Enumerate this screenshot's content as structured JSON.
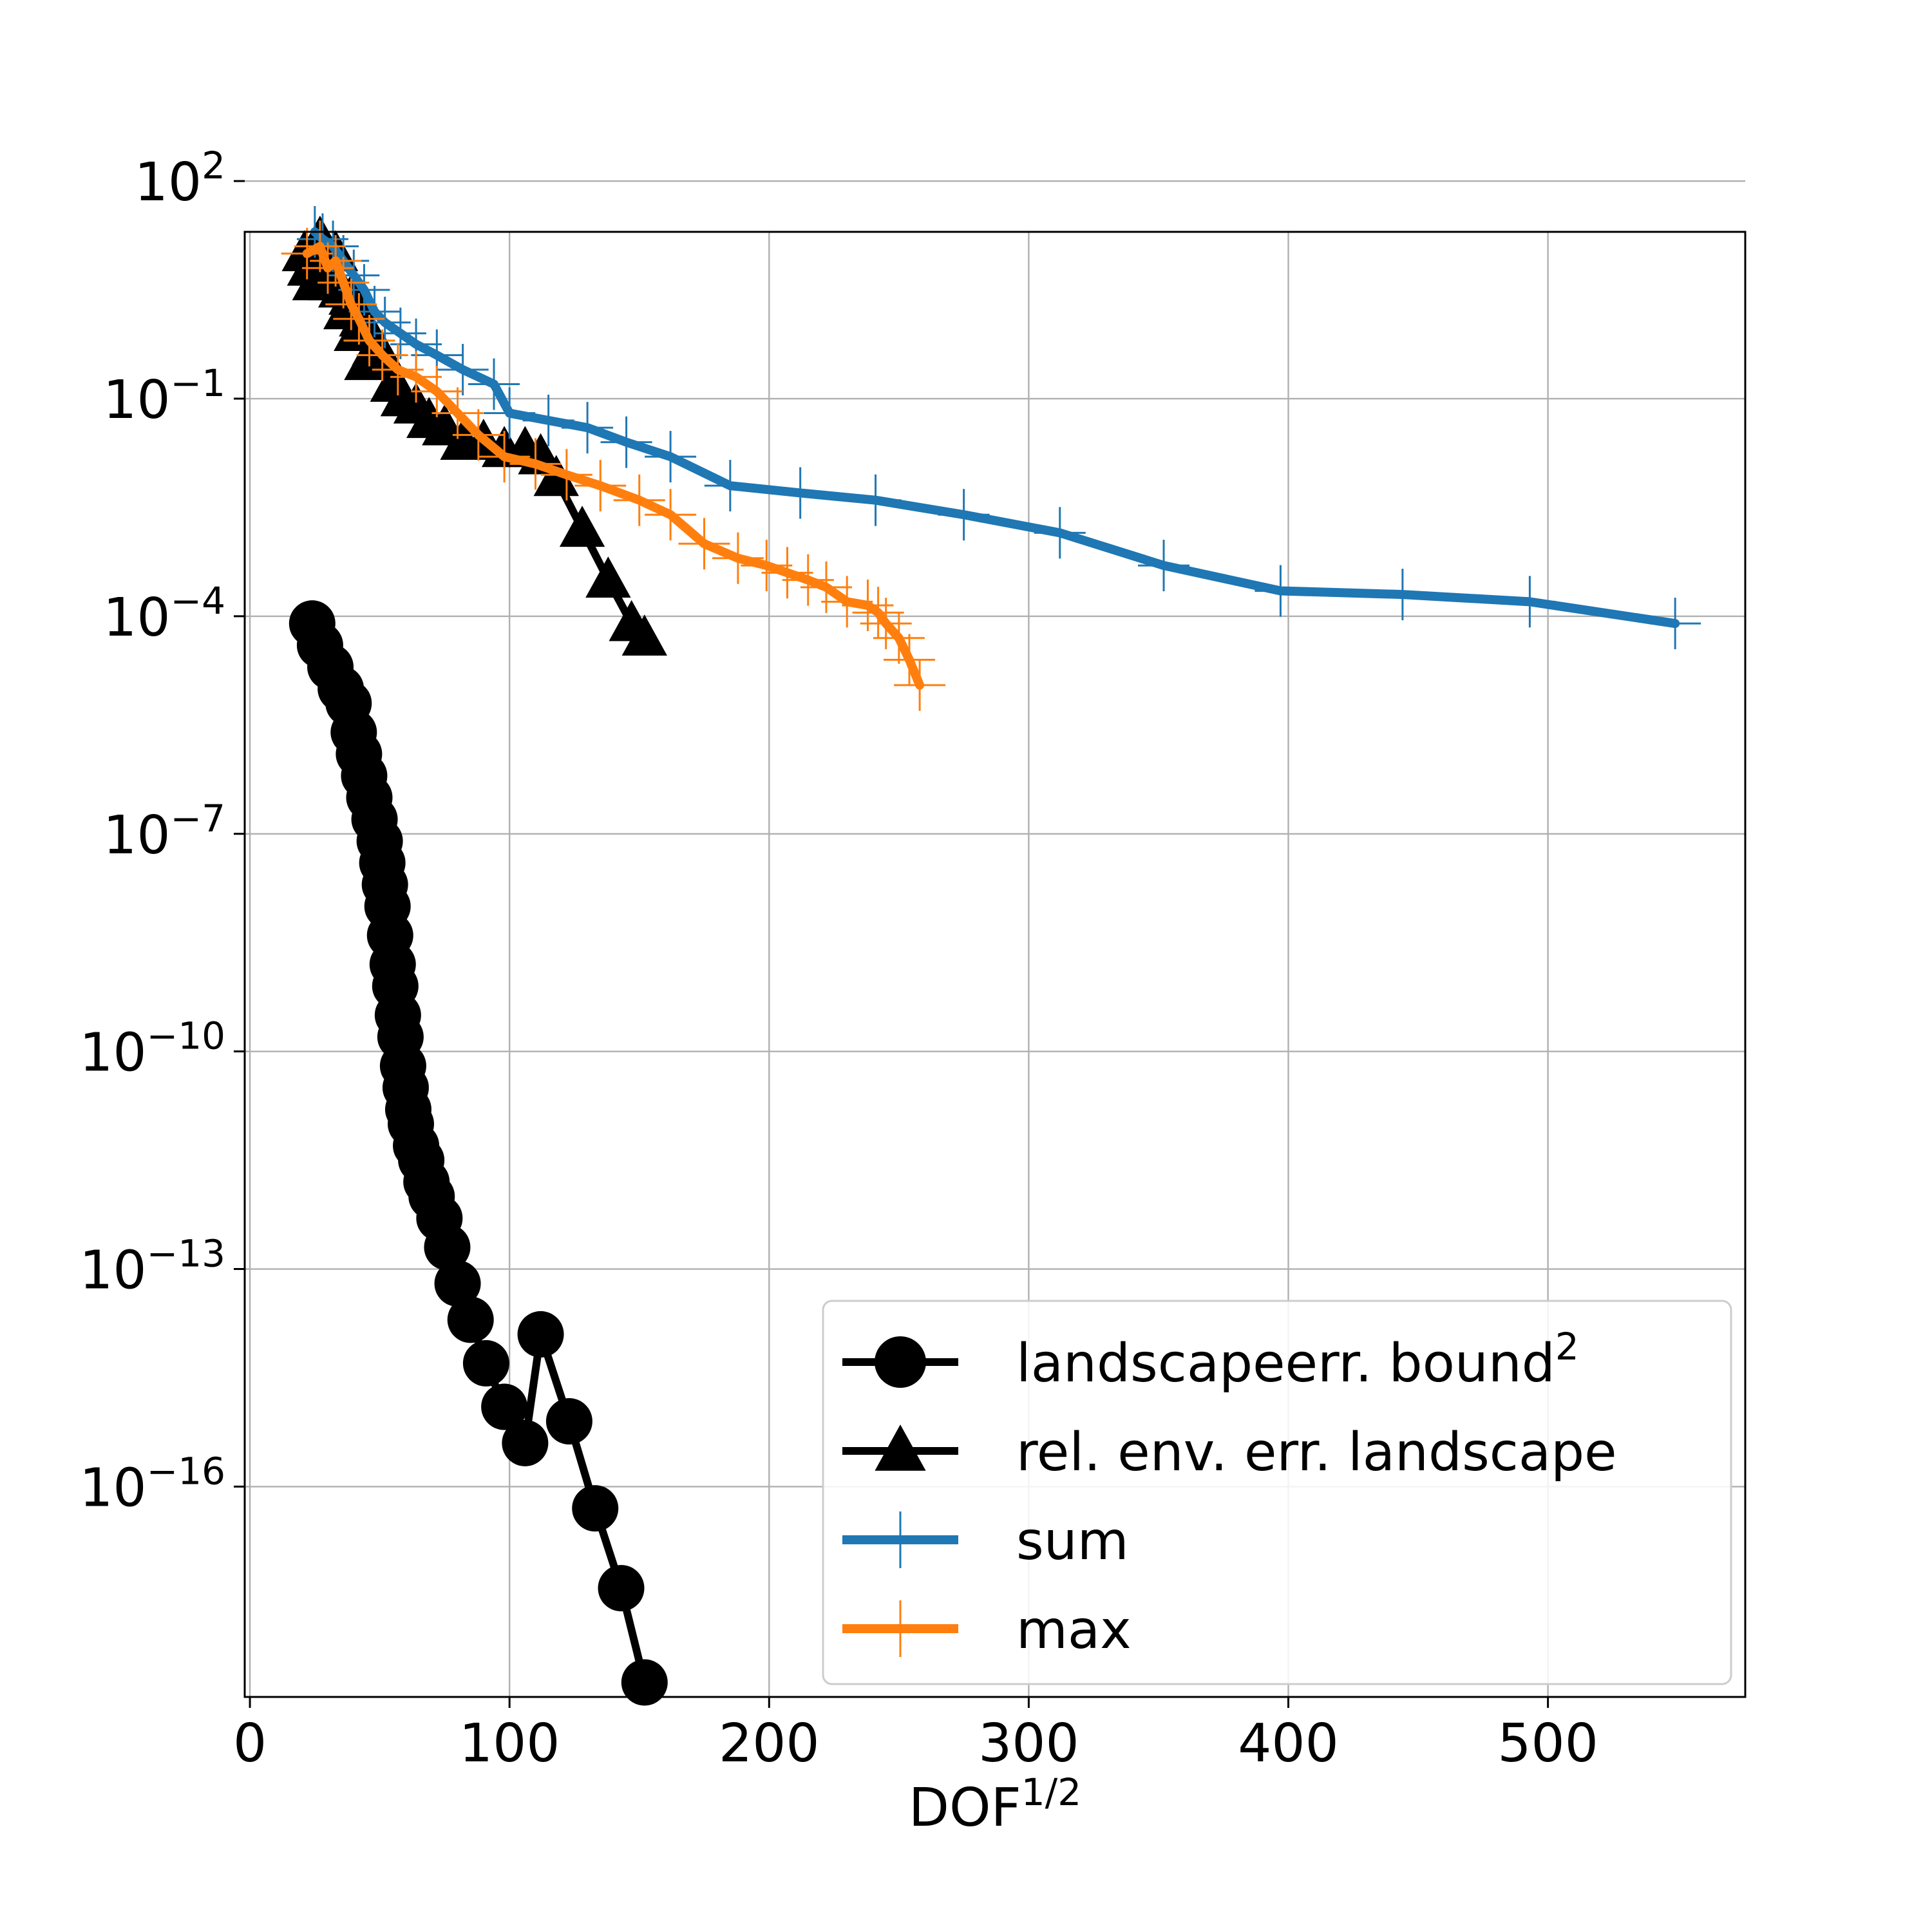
{
  "chart_data": {
    "type": "line",
    "xlabel": "DOF",
    "xlabel_sup": "1/2",
    "ylabel": "",
    "xlim": [
      -2,
      576
    ],
    "ylim_log10": [
      -18.9,
      1.3
    ],
    "yscale": "log",
    "grid": true,
    "legend_position": "bottom-right",
    "x_ticks": [
      0,
      100,
      200,
      300,
      400,
      500
    ],
    "y_ticks": [
      {
        "exp": 2,
        "base": "10",
        "sup": "2"
      },
      {
        "exp": -1,
        "base": "10",
        "sup": "−1"
      },
      {
        "exp": -4,
        "base": "10",
        "sup": "−4"
      },
      {
        "exp": -7,
        "base": "10",
        "sup": "−7"
      },
      {
        "exp": -10,
        "base": "10",
        "sup": "−10"
      },
      {
        "exp": -13,
        "base": "10",
        "sup": "−13"
      },
      {
        "exp": -16,
        "base": "10",
        "sup": "−16"
      }
    ],
    "series": [
      {
        "name": "landscapeerr. bound",
        "name_sup": "2",
        "color": "#000000",
        "marker": "circle",
        "x": [
          24,
          27,
          31,
          35,
          38,
          40,
          42,
          44,
          46,
          48,
          50,
          51,
          52,
          53,
          54,
          55,
          56,
          57,
          58,
          59,
          60,
          61,
          62,
          64,
          66,
          68,
          70,
          73,
          76,
          80,
          85,
          91,
          98,
          106,
          112,
          123,
          133,
          143,
          152
        ],
        "y": [
          -4.1,
          -4.4,
          -4.7,
          -5.0,
          -5.2,
          -5.6,
          -5.9,
          -6.2,
          -6.5,
          -6.8,
          -7.1,
          -7.4,
          -7.7,
          -8.0,
          -8.4,
          -8.8,
          -9.1,
          -9.5,
          -9.8,
          -10.2,
          -10.5,
          -10.8,
          -11.0,
          -11.3,
          -11.5,
          -11.8,
          -12.0,
          -12.3,
          -12.7,
          -13.2,
          -13.7,
          -14.3,
          -14.9,
          -15.4,
          -13.9,
          -15.1,
          -16.3,
          -17.4,
          -18.7
        ]
      },
      {
        "name": "rel. env. err. landscape",
        "color": "#000000",
        "marker": "triangle",
        "x": [
          21,
          23,
          25,
          27,
          29,
          31,
          33,
          35,
          37,
          39,
          41,
          43,
          45,
          48,
          51,
          55,
          59,
          64,
          69,
          75,
          82,
          90,
          98,
          106,
          112,
          118,
          128,
          138,
          147,
          152
        ],
        "y": [
          1.0,
          0.8,
          0.6,
          1.2,
          1.0,
          0.6,
          1.0,
          0.5,
          0.2,
          0.4,
          -0.1,
          0.1,
          -0.5,
          -0.3,
          -0.4,
          -0.8,
          -1.0,
          -1.1,
          -1.3,
          -1.4,
          -1.6,
          -1.6,
          -1.7,
          -1.7,
          -1.8,
          -2.1,
          -2.8,
          -3.5,
          -4.1,
          -4.3
        ]
      },
      {
        "name": "sum",
        "color": "#1f77b4",
        "marker": "plus",
        "x": [
          25,
          28,
          32,
          36,
          40,
          44,
          48,
          52,
          58,
          64,
          72,
          82,
          94,
          100,
          115,
          130,
          145,
          162,
          185,
          212,
          241,
          275,
          312,
          352,
          397,
          444,
          493,
          549
        ],
        "y": [
          1.3,
          1.2,
          1.1,
          0.9,
          0.7,
          0.5,
          0.2,
          0.05,
          -0.1,
          -0.25,
          -0.4,
          -0.6,
          -0.8,
          -1.2,
          -1.3,
          -1.4,
          -1.6,
          -1.8,
          -2.2,
          -2.3,
          -2.4,
          -2.6,
          -2.85,
          -3.3,
          -3.65,
          -3.7,
          -3.8,
          -4.1
        ]
      },
      {
        "name": "max",
        "color": "#ff7f0e",
        "marker": "plus",
        "x": [
          22,
          27,
          30,
          33,
          36,
          39,
          42,
          46,
          51,
          57,
          64,
          72,
          80,
          88,
          98,
          110,
          122,
          135,
          150,
          162,
          175,
          188,
          199,
          207,
          215,
          222,
          230,
          238,
          242,
          245,
          250,
          254,
          258
        ],
        "y": [
          1.0,
          1.1,
          0.8,
          0.9,
          0.6,
          0.3,
          0.1,
          -0.2,
          -0.4,
          -0.6,
          -0.7,
          -0.9,
          -1.2,
          -1.5,
          -1.8,
          -1.9,
          -2.05,
          -2.2,
          -2.4,
          -2.6,
          -3.0,
          -3.2,
          -3.3,
          -3.4,
          -3.5,
          -3.6,
          -3.8,
          -3.85,
          -3.95,
          -4.1,
          -4.3,
          -4.6,
          -4.95
        ]
      }
    ]
  }
}
